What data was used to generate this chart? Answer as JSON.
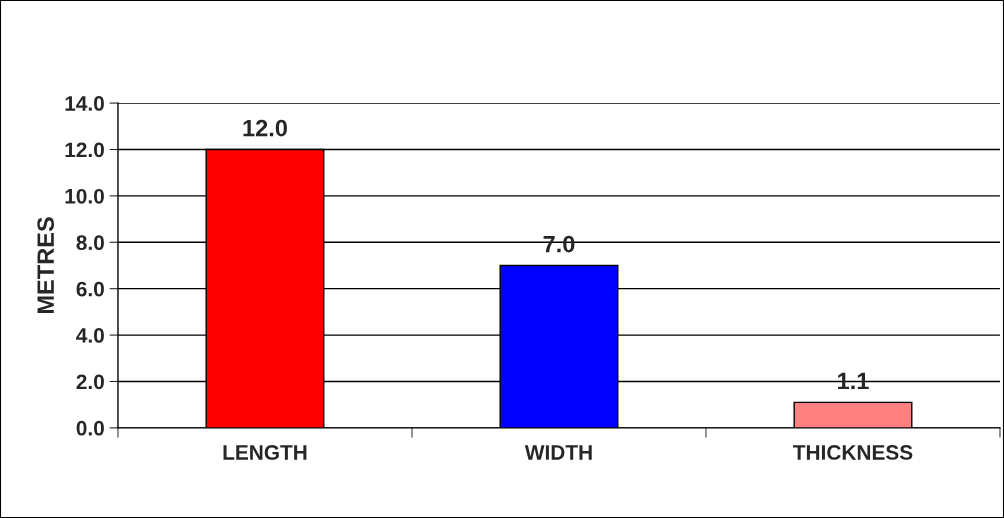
{
  "chart_data": {
    "type": "bar",
    "ylabel": "METRES",
    "categories": [
      "LENGTH",
      "WIDTH",
      "THICKNESS"
    ],
    "values": [
      12.0,
      7.0,
      1.1
    ],
    "colors": [
      "#ff0000",
      "#0000ff",
      "#ff8080"
    ],
    "value_labels": [
      "12.0",
      "7.0",
      "1.1"
    ],
    "ylim": [
      0,
      14
    ],
    "yticks": [
      {
        "value": 0,
        "label": "0.0"
      },
      {
        "value": 2,
        "label": "2.0"
      },
      {
        "value": 4,
        "label": "4.0"
      },
      {
        "value": 6,
        "label": "6.0"
      },
      {
        "value": 8,
        "label": "8.0"
      },
      {
        "value": 10,
        "label": "10.0"
      },
      {
        "value": 12,
        "label": "12.0"
      },
      {
        "value": 14,
        "label": "14.0"
      }
    ],
    "grid": "y",
    "legend": false
  }
}
